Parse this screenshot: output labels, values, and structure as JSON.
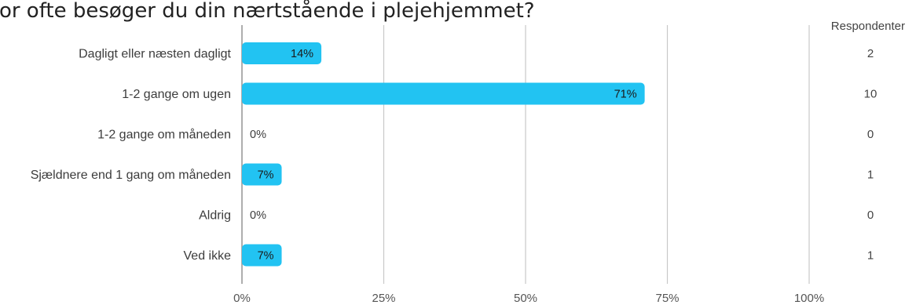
{
  "chart_data": {
    "type": "bar",
    "orientation": "horizontal",
    "title": "Hvor ofte besøger du din nærtstående i plejehjemmet?",
    "categories": [
      "Dagligt eller næsten dagligt",
      "1-2 gange om ugen",
      "1-2 gange om måneden",
      "Sjældnere end 1 gang om måneden",
      "Aldrig",
      "Ved ikke"
    ],
    "values": [
      14,
      71,
      0,
      7,
      0,
      7
    ],
    "value_labels": [
      "14%",
      "71%",
      "0%",
      "7%",
      "0%",
      "7%"
    ],
    "respondents_header": "Respondenter",
    "respondents": [
      "2",
      "10",
      "0",
      "1",
      "0",
      "1"
    ],
    "xlim": [
      0,
      100
    ],
    "x_ticks": [
      0,
      25,
      50,
      75,
      100
    ],
    "x_tick_labels": [
      "0%",
      "25%",
      "50%",
      "75%",
      "100%"
    ],
    "grid": true,
    "bar_color": "#22c3f2",
    "grid_color": "#c8c8c8"
  }
}
